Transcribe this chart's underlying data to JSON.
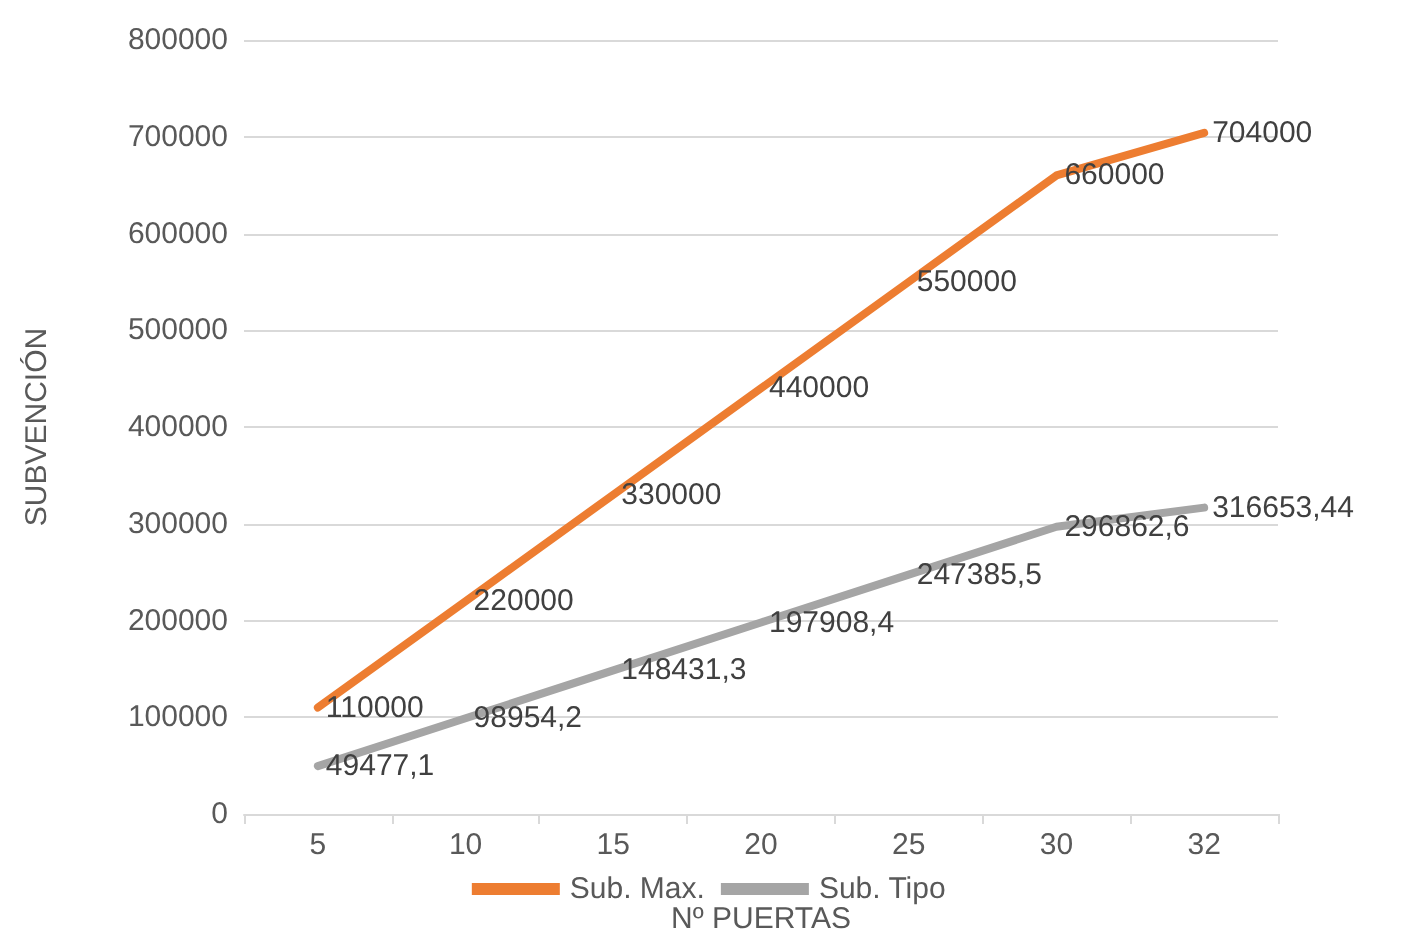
{
  "chart_data": {
    "type": "line",
    "xlabel": "Nº PUERTAS",
    "ylabel": "SUBVENCIÓN",
    "categories": [
      "5",
      "10",
      "15",
      "20",
      "25",
      "30",
      "32"
    ],
    "series": [
      {
        "name": "Sub. Max.",
        "color": "#ed7d31",
        "values": [
          110000,
          220000,
          330000,
          440000,
          550000,
          660000,
          704000
        ],
        "value_labels": [
          "110000",
          "220000",
          "330000",
          "440000",
          "550000",
          "660000",
          "704000"
        ]
      },
      {
        "name": "Sub. Tipo",
        "color": "#a5a5a5",
        "values": [
          49477.1,
          98954.2,
          148431.3,
          197908.4,
          247385.5,
          296862.6,
          316653.44
        ],
        "value_labels": [
          "49477,1",
          "98954,2",
          "148431,3",
          "197908,4",
          "247385,5",
          "296862,6",
          "316653,44"
        ]
      }
    ],
    "ylim": [
      0,
      800000
    ],
    "yticks": [
      0,
      100000,
      200000,
      300000,
      400000,
      500000,
      600000,
      700000,
      800000
    ],
    "grid": "y",
    "legend": "bottom",
    "marker": "none",
    "line_style": "solid"
  }
}
